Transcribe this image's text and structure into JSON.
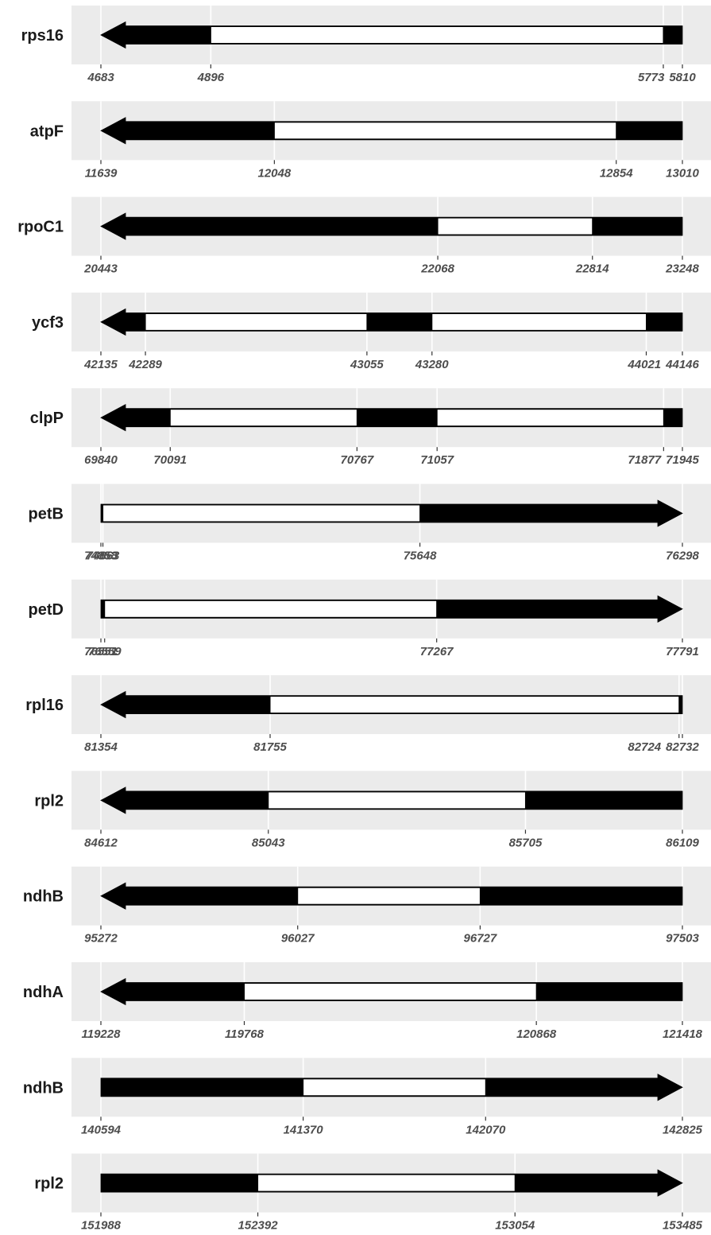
{
  "chart_data": {
    "type": "gene-structure",
    "panel_background": "#ebebeb",
    "gridline_color": "#ffffff",
    "exon_color": "#000000",
    "intron_color": "#ffffff",
    "tick_color": "#333333",
    "genes": [
      {
        "name": "rps16",
        "strand": "-",
        "start": 4683,
        "end": 5810,
        "introns": [
          [
            4896,
            5773
          ]
        ],
        "ticks": [
          4683,
          4896,
          5773,
          5810
        ]
      },
      {
        "name": "atpF",
        "strand": "-",
        "start": 11639,
        "end": 13010,
        "introns": [
          [
            12048,
            12854
          ]
        ],
        "ticks": [
          11639,
          12048,
          12854,
          13010
        ]
      },
      {
        "name": "rpoC1",
        "strand": "-",
        "start": 20443,
        "end": 23248,
        "introns": [
          [
            22068,
            22814
          ]
        ],
        "ticks": [
          20443,
          22068,
          22814,
          23248
        ]
      },
      {
        "name": "ycf3",
        "strand": "-",
        "start": 42135,
        "end": 44146,
        "introns": [
          [
            42289,
            43055
          ],
          [
            43280,
            44021
          ]
        ],
        "ticks": [
          42135,
          42289,
          43055,
          43280,
          44021,
          44146
        ]
      },
      {
        "name": "clpP",
        "strand": "-",
        "start": 69840,
        "end": 71945,
        "introns": [
          [
            70091,
            70767
          ],
          [
            71057,
            71877
          ]
        ],
        "ticks": [
          69840,
          70091,
          70767,
          71057,
          71877,
          71945
        ]
      },
      {
        "name": "petB",
        "strand": "+",
        "start": 74858,
        "end": 76298,
        "introns": [
          [
            74863,
            75648
          ]
        ],
        "ticks": [
          74858,
          74863,
          75648,
          76298
        ]
      },
      {
        "name": "petD",
        "strand": "+",
        "start": 76551,
        "end": 77791,
        "introns": [
          [
            76559,
            77267
          ]
        ],
        "ticks": [
          76551,
          76559,
          77267,
          77791
        ]
      },
      {
        "name": "rpl16",
        "strand": "-",
        "start": 81354,
        "end": 82732,
        "introns": [
          [
            81755,
            82724
          ]
        ],
        "ticks": [
          81354,
          81755,
          82724,
          82732
        ]
      },
      {
        "name": "rpl2",
        "strand": "-",
        "start": 84612,
        "end": 86109,
        "introns": [
          [
            85043,
            85705
          ]
        ],
        "ticks": [
          84612,
          85043,
          85705,
          86109
        ]
      },
      {
        "name": "ndhB",
        "strand": "-",
        "start": 95272,
        "end": 97503,
        "introns": [
          [
            96027,
            96727
          ]
        ],
        "ticks": [
          95272,
          96027,
          96727,
          97503
        ]
      },
      {
        "name": "ndhA",
        "strand": "-",
        "start": 119228,
        "end": 121418,
        "introns": [
          [
            119768,
            120868
          ]
        ],
        "ticks": [
          119228,
          119768,
          120868,
          121418
        ]
      },
      {
        "name": "ndhB",
        "strand": "+",
        "start": 140594,
        "end": 142825,
        "introns": [
          [
            141370,
            142070
          ]
        ],
        "ticks": [
          140594,
          141370,
          142070,
          142825
        ]
      },
      {
        "name": "rpl2",
        "strand": "+",
        "start": 151988,
        "end": 153485,
        "introns": [
          [
            152392,
            153054
          ]
        ],
        "ticks": [
          151988,
          152392,
          153054,
          153485
        ]
      }
    ]
  }
}
